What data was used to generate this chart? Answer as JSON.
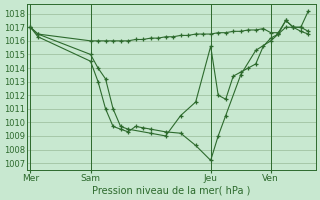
{
  "background_color": "#c8e8d0",
  "grid_color": "#99bb99",
  "line_color": "#2d6a2d",
  "marker_color": "#2d6a2d",
  "xlabel_text": "Pression niveau de la mer( hPa )",
  "xtick_labels": [
    "Mer",
    "Sam",
    "Jeu",
    "Ven"
  ],
  "xtick_positions": [
    0,
    8,
    24,
    32
  ],
  "xlim": [
    -0.5,
    38
  ],
  "ylim": [
    1006.5,
    1018.7
  ],
  "yticks": [
    1007,
    1008,
    1009,
    1010,
    1011,
    1012,
    1013,
    1014,
    1015,
    1016,
    1017,
    1018
  ],
  "vlines": [
    0,
    8,
    24,
    32
  ],
  "series1_x": [
    0,
    1,
    8,
    9,
    10,
    11,
    12,
    13,
    14,
    15,
    16,
    17,
    18,
    19,
    20,
    21,
    22,
    23,
    24,
    25,
    26,
    27,
    28,
    29,
    30,
    31,
    32,
    33,
    34,
    35,
    36,
    37
  ],
  "series1_y": [
    1017.0,
    1016.5,
    1016.0,
    1016.0,
    1016.0,
    1016.0,
    1016.0,
    1016.0,
    1016.1,
    1016.1,
    1016.2,
    1016.2,
    1016.3,
    1016.3,
    1016.4,
    1016.4,
    1016.5,
    1016.5,
    1016.5,
    1016.6,
    1016.6,
    1016.7,
    1016.7,
    1016.8,
    1016.8,
    1016.9,
    1016.6,
    1016.6,
    1017.5,
    1017.0,
    1017.0,
    1018.2
  ],
  "series2_x": [
    0,
    1,
    8,
    9,
    10,
    11,
    12,
    13,
    16,
    18,
    20,
    22,
    24,
    25,
    26,
    27,
    28,
    29,
    30,
    31,
    32,
    33,
    34,
    35,
    36,
    37
  ],
  "series2_y": [
    1017.0,
    1016.5,
    1015.0,
    1014.0,
    1013.2,
    1011.0,
    1009.7,
    1009.5,
    1009.2,
    1009.0,
    1010.5,
    1011.5,
    1015.6,
    1012.0,
    1011.7,
    1013.4,
    1013.7,
    1014.0,
    1014.3,
    1015.6,
    1016.2,
    1016.5,
    1017.5,
    1017.0,
    1017.0,
    1016.7
  ],
  "series3_x": [
    0,
    1,
    8,
    9,
    10,
    11,
    12,
    13,
    14,
    15,
    16,
    18,
    20,
    22,
    24,
    25,
    26,
    28,
    30,
    32,
    33,
    34,
    35,
    36,
    37
  ],
  "series3_y": [
    1017.0,
    1016.3,
    1014.5,
    1013.0,
    1011.0,
    1009.7,
    1009.5,
    1009.3,
    1009.7,
    1009.6,
    1009.5,
    1009.3,
    1009.2,
    1008.3,
    1007.2,
    1009.0,
    1010.5,
    1013.5,
    1015.3,
    1016.0,
    1016.5,
    1017.0,
    1017.0,
    1016.7,
    1016.5
  ]
}
